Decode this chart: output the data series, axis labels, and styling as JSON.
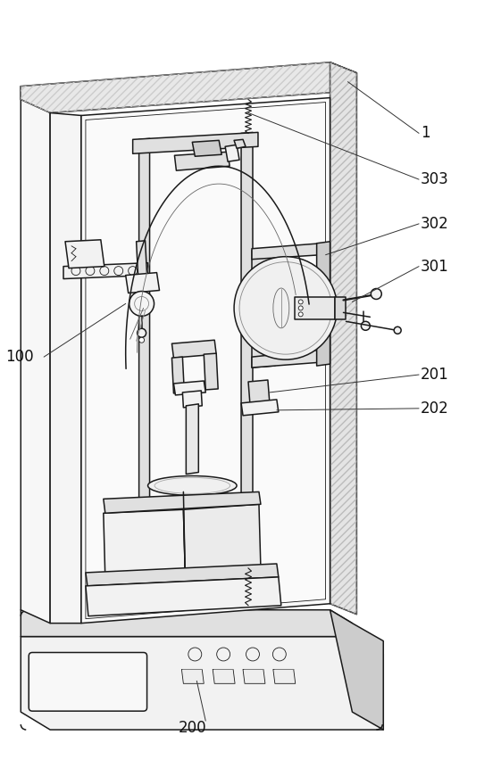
{
  "figure_width": 5.61,
  "figure_height": 8.52,
  "dpi": 100,
  "bg_color": "#ffffff",
  "lc": "#1a1a1a",
  "lw": 1.1,
  "tlw": 0.6,
  "fs": 12,
  "gray_light": "#f2f2f2",
  "gray_mid": "#e0e0e0",
  "gray_dark": "#cccccc",
  "hatch_gray": "#bbbbbb"
}
